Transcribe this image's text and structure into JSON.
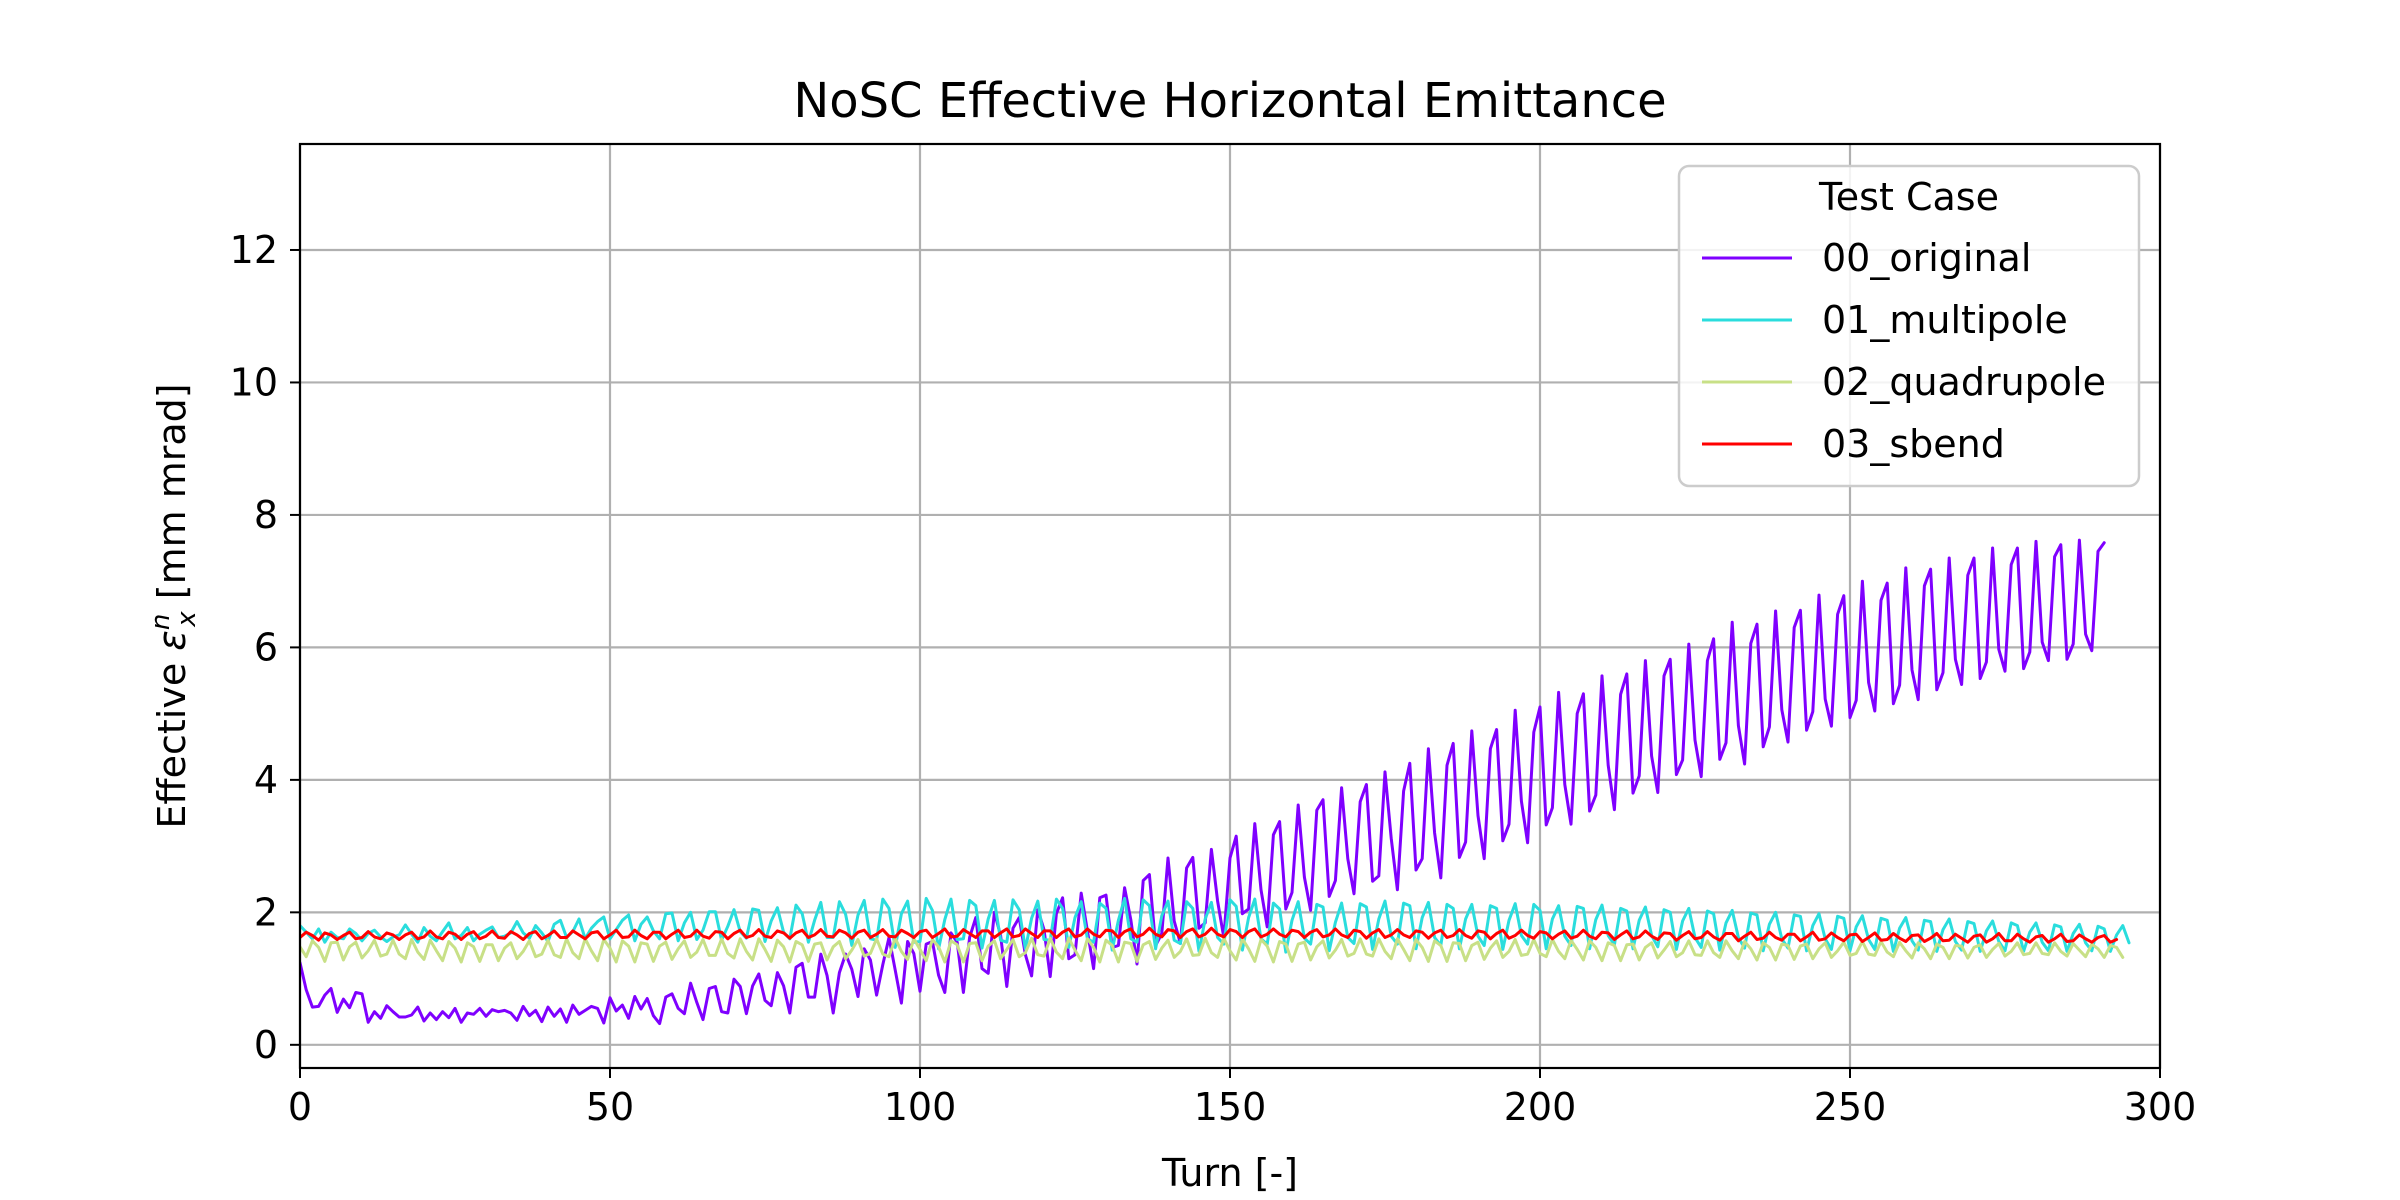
{
  "chart_data": {
    "type": "line",
    "title": "NoSC Effective Horizontal Emittance",
    "xlabel": "Turn [-]",
    "ylabel_prefix": "Effective ",
    "ylabel_symbol": "ε",
    "ylabel_superscript": "n",
    "ylabel_subscript": "x",
    "ylabel_suffix": " [mm mrad]",
    "xlim": [
      0,
      300
    ],
    "ylim": [
      -0.35,
      13.6
    ],
    "xticks": [
      0,
      50,
      100,
      150,
      200,
      250,
      300
    ],
    "yticks": [
      0,
      2,
      4,
      6,
      8,
      10,
      12
    ],
    "grid": true,
    "legend": {
      "title": "Test Case",
      "position": "top-right"
    },
    "series_model": "Values are listed as one value per turn, turns 0 to 300 inclusive.",
    "series": [
      {
        "name": "00_original",
        "color": "#7f00ff",
        "values": [
          1.24,
          0.83,
          0.57,
          0.58,
          0.75,
          0.85,
          0.49,
          0.69,
          0.56,
          0.79,
          0.77,
          0.34,
          0.5,
          0.4,
          0.59,
          0.5,
          0.42,
          0.42,
          0.45,
          0.57,
          0.36,
          0.48,
          0.38,
          0.5,
          0.41,
          0.55,
          0.34,
          0.48,
          0.46,
          0.55,
          0.43,
          0.53,
          0.5,
          0.52,
          0.48,
          0.37,
          0.58,
          0.44,
          0.52,
          0.35,
          0.57,
          0.43,
          0.54,
          0.34,
          0.6,
          0.46,
          0.52,
          0.58,
          0.55,
          0.33,
          0.71,
          0.51,
          0.6,
          0.4,
          0.73,
          0.54,
          0.7,
          0.44,
          0.32,
          0.72,
          0.77,
          0.55,
          0.47,
          0.93,
          0.64,
          0.38,
          0.85,
          0.88,
          0.5,
          0.48,
          0.99,
          0.88,
          0.47,
          0.89,
          1.07,
          0.67,
          0.59,
          1.09,
          0.89,
          0.48,
          1.17,
          1.23,
          0.72,
          0.72,
          1.37,
          1.05,
          0.48,
          1.09,
          1.37,
          1.14,
          0.73,
          1.45,
          1.28,
          0.75,
          1.21,
          1.62,
          1.13,
          0.63,
          1.56,
          1.38,
          0.81,
          1.52,
          1.56,
          1.05,
          0.79,
          1.69,
          1.55,
          0.79,
          1.62,
          1.92,
          1.15,
          1.08,
          2.0,
          1.65,
          0.88,
          1.76,
          1.92,
          1.36,
          1.04,
          2.04,
          1.74,
          1.03,
          1.98,
          2.22,
          1.3,
          1.36,
          2.29,
          1.72,
          1.15,
          2.22,
          2.26,
          1.47,
          1.5,
          2.37,
          1.89,
          1.22,
          2.48,
          2.57,
          1.5,
          1.68,
          2.82,
          1.87,
          1.53,
          2.67,
          2.83,
          1.76,
          1.84,
          2.95,
          2.17,
          1.62,
          2.82,
          3.15,
          1.98,
          2.05,
          3.34,
          2.34,
          1.78,
          3.17,
          3.37,
          2.05,
          2.3,
          3.62,
          2.53,
          2.03,
          3.54,
          3.7,
          2.24,
          2.48,
          3.88,
          2.81,
          2.28,
          3.67,
          3.93,
          2.47,
          2.55,
          4.12,
          3.12,
          2.34,
          3.83,
          4.25,
          2.64,
          2.81,
          4.47,
          3.2,
          2.52,
          4.22,
          4.55,
          2.83,
          3.06,
          4.74,
          3.46,
          2.81,
          4.47,
          4.76,
          3.08,
          3.33,
          5.05,
          3.68,
          3.05,
          4.72,
          5.1,
          3.32,
          3.58,
          5.32,
          3.93,
          3.33,
          5.0,
          5.3,
          3.53,
          3.77,
          5.57,
          4.22,
          3.55,
          5.29,
          5.6,
          3.8,
          4.06,
          5.8,
          4.36,
          3.81,
          5.57,
          5.82,
          4.08,
          4.3,
          6.05,
          4.6,
          4.05,
          5.8,
          6.13,
          4.31,
          4.56,
          6.38,
          4.82,
          4.24,
          6.06,
          6.35,
          4.5,
          4.8,
          6.55,
          5.06,
          4.57,
          6.3,
          6.56,
          4.75,
          5.03,
          6.79,
          5.22,
          4.81,
          6.5,
          6.78,
          4.94,
          5.2,
          7.0,
          5.47,
          5.04,
          6.71,
          6.97,
          5.15,
          5.43,
          7.2,
          5.66,
          5.21,
          6.93,
          7.18,
          5.36,
          5.62,
          7.35,
          5.82,
          5.44,
          7.09,
          7.35,
          5.53,
          5.78,
          7.5,
          5.97,
          5.64,
          7.25,
          7.5,
          5.68,
          5.93,
          7.6,
          6.08,
          5.8,
          7.37,
          7.55,
          5.82,
          6.05,
          7.62,
          6.2,
          5.95,
          7.45,
          7.58
        ]
      },
      {
        "name": "01_multipole",
        "color": "#2adddd",
        "values": [
          1.8,
          1.7,
          1.6,
          1.75,
          1.55,
          1.7,
          1.62,
          1.6,
          1.75,
          1.68,
          1.57,
          1.68,
          1.73,
          1.63,
          1.56,
          1.63,
          1.66,
          1.81,
          1.67,
          1.55,
          1.77,
          1.64,
          1.57,
          1.71,
          1.84,
          1.6,
          1.65,
          1.77,
          1.57,
          1.67,
          1.73,
          1.78,
          1.62,
          1.64,
          1.69,
          1.86,
          1.69,
          1.61,
          1.8,
          1.69,
          1.56,
          1.82,
          1.88,
          1.62,
          1.71,
          1.9,
          1.6,
          1.76,
          1.86,
          1.93,
          1.6,
          1.74,
          1.88,
          1.96,
          1.57,
          1.82,
          1.93,
          1.72,
          1.6,
          1.98,
          1.99,
          1.57,
          1.84,
          2.0,
          1.59,
          1.73,
          2.01,
          2.01,
          1.58,
          1.79,
          2.04,
          1.71,
          1.61,
          2.05,
          2.03,
          1.56,
          1.87,
          2.07,
          1.7,
          1.6,
          2.11,
          1.98,
          1.55,
          1.88,
          2.15,
          1.62,
          1.62,
          2.16,
          1.97,
          1.5,
          1.96,
          2.18,
          1.6,
          1.58,
          2.2,
          2.06,
          1.47,
          1.98,
          2.17,
          1.55,
          1.56,
          2.21,
          2.03,
          1.45,
          1.89,
          2.2,
          1.59,
          1.6,
          2.18,
          2.1,
          1.46,
          1.9,
          2.18,
          1.58,
          1.55,
          2.19,
          2.04,
          1.45,
          1.91,
          2.17,
          1.59,
          1.58,
          2.2,
          2.06,
          1.47,
          1.92,
          2.16,
          1.6,
          1.55,
          2.14,
          2.06,
          1.43,
          1.88,
          2.21,
          1.6,
          1.55,
          2.19,
          2.1,
          1.45,
          1.95,
          2.17,
          1.58,
          1.53,
          2.16,
          2.06,
          1.41,
          1.9,
          2.15,
          1.62,
          1.52,
          2.19,
          2.09,
          1.43,
          1.92,
          2.2,
          1.6,
          1.52,
          2.14,
          2.05,
          1.4,
          1.88,
          2.16,
          1.61,
          1.52,
          2.12,
          2.08,
          1.42,
          1.85,
          2.14,
          1.62,
          1.53,
          2.13,
          2.08,
          1.44,
          1.9,
          2.17,
          1.64,
          1.52,
          2.14,
          2.1,
          1.45,
          1.92,
          2.15,
          1.62,
          1.5,
          2.12,
          2.06,
          1.45,
          1.9,
          2.12,
          1.64,
          1.5,
          2.1,
          2.06,
          1.44,
          1.88,
          2.13,
          1.65,
          1.52,
          2.12,
          2.03,
          1.45,
          1.9,
          2.1,
          1.64,
          1.5,
          2.09,
          2.06,
          1.45,
          1.89,
          2.11,
          1.65,
          1.51,
          2.06,
          2.02,
          1.45,
          1.88,
          2.08,
          1.65,
          1.48,
          2.04,
          2.0,
          1.44,
          1.87,
          2.06,
          1.62,
          1.47,
          2.02,
          1.98,
          1.43,
          1.84,
          2.03,
          1.62,
          1.46,
          1.99,
          1.96,
          1.42,
          1.82,
          2.0,
          1.6,
          1.46,
          1.96,
          1.94,
          1.42,
          1.8,
          1.98,
          1.6,
          1.44,
          1.94,
          1.91,
          1.42,
          1.78,
          1.95,
          1.59,
          1.44,
          1.91,
          1.88,
          1.41,
          1.76,
          1.92,
          1.57,
          1.43,
          1.88,
          1.86,
          1.41,
          1.74,
          1.9,
          1.56,
          1.43,
          1.86,
          1.83,
          1.41,
          1.72,
          1.87,
          1.56,
          1.42,
          1.84,
          1.8,
          1.41,
          1.7,
          1.84,
          1.55,
          1.42,
          1.81,
          1.78,
          1.41,
          1.68,
          1.82,
          1.54,
          1.42,
          1.79,
          1.75,
          1.41,
          1.66,
          1.8,
          1.54
        ]
      },
      {
        "name": "02_quadrupole",
        "color": "#c8e087",
        "values": [
          1.48,
          1.33,
          1.57,
          1.47,
          1.26,
          1.54,
          1.55,
          1.28,
          1.48,
          1.55,
          1.31,
          1.42,
          1.58,
          1.34,
          1.37,
          1.58,
          1.37,
          1.3,
          1.59,
          1.4,
          1.29,
          1.58,
          1.42,
          1.27,
          1.56,
          1.46,
          1.25,
          1.54,
          1.48,
          1.26,
          1.51,
          1.51,
          1.27,
          1.46,
          1.54,
          1.3,
          1.41,
          1.57,
          1.33,
          1.37,
          1.58,
          1.36,
          1.32,
          1.6,
          1.39,
          1.3,
          1.6,
          1.42,
          1.27,
          1.59,
          1.46,
          1.25,
          1.57,
          1.49,
          1.25,
          1.54,
          1.52,
          1.26,
          1.49,
          1.55,
          1.29,
          1.45,
          1.57,
          1.32,
          1.4,
          1.59,
          1.35,
          1.35,
          1.6,
          1.38,
          1.31,
          1.6,
          1.41,
          1.28,
          1.6,
          1.44,
          1.26,
          1.58,
          1.48,
          1.25,
          1.56,
          1.51,
          1.26,
          1.52,
          1.54,
          1.28,
          1.48,
          1.56,
          1.3,
          1.43,
          1.59,
          1.34,
          1.38,
          1.6,
          1.37,
          1.33,
          1.61,
          1.41,
          1.29,
          1.6,
          1.44,
          1.27,
          1.59,
          1.48,
          1.25,
          1.57,
          1.51,
          1.25,
          1.53,
          1.54,
          1.27,
          1.49,
          1.57,
          1.3,
          1.44,
          1.59,
          1.33,
          1.39,
          1.61,
          1.36,
          1.34,
          1.61,
          1.4,
          1.3,
          1.61,
          1.43,
          1.27,
          1.6,
          1.47,
          1.25,
          1.58,
          1.5,
          1.25,
          1.55,
          1.53,
          1.26,
          1.51,
          1.56,
          1.29,
          1.46,
          1.58,
          1.32,
          1.41,
          1.6,
          1.35,
          1.36,
          1.61,
          1.39,
          1.32,
          1.61,
          1.42,
          1.28,
          1.6,
          1.45,
          1.26,
          1.59,
          1.49,
          1.25,
          1.56,
          1.52,
          1.26,
          1.52,
          1.55,
          1.28,
          1.48,
          1.57,
          1.31,
          1.43,
          1.59,
          1.34,
          1.38,
          1.6,
          1.37,
          1.34,
          1.6,
          1.41,
          1.3,
          1.6,
          1.44,
          1.27,
          1.59,
          1.47,
          1.26,
          1.57,
          1.5,
          1.26,
          1.54,
          1.53,
          1.27,
          1.5,
          1.55,
          1.29,
          1.46,
          1.57,
          1.32,
          1.41,
          1.59,
          1.35,
          1.37,
          1.59,
          1.38,
          1.33,
          1.59,
          1.41,
          1.3,
          1.58,
          1.44,
          1.28,
          1.57,
          1.47,
          1.27,
          1.54,
          1.5,
          1.27,
          1.51,
          1.52,
          1.28,
          1.47,
          1.54,
          1.31,
          1.43,
          1.56,
          1.33,
          1.39,
          1.57,
          1.36,
          1.35,
          1.57,
          1.39,
          1.32,
          1.57,
          1.42,
          1.3,
          1.56,
          1.45,
          1.28,
          1.54,
          1.47,
          1.28,
          1.52,
          1.5,
          1.29,
          1.49,
          1.52,
          1.3,
          1.45,
          1.54,
          1.32,
          1.42,
          1.55,
          1.35,
          1.38,
          1.56,
          1.37,
          1.35,
          1.56,
          1.4,
          1.33,
          1.55,
          1.42,
          1.31,
          1.54,
          1.45,
          1.3,
          1.52,
          1.47,
          1.3,
          1.5,
          1.49,
          1.31,
          1.47,
          1.51,
          1.32,
          1.44,
          1.53,
          1.34,
          1.41,
          1.54,
          1.36,
          1.38,
          1.54,
          1.38,
          1.36,
          1.54,
          1.41,
          1.34,
          1.53,
          1.43,
          1.33,
          1.52,
          1.45,
          1.32,
          1.5,
          1.47,
          1.32
        ]
      },
      {
        "name": "03_sbend",
        "color": "#ff0000",
        "values": [
          1.62,
          1.7,
          1.65,
          1.58,
          1.69,
          1.66,
          1.59,
          1.65,
          1.7,
          1.6,
          1.62,
          1.71,
          1.63,
          1.6,
          1.69,
          1.66,
          1.59,
          1.66,
          1.7,
          1.6,
          1.63,
          1.72,
          1.63,
          1.6,
          1.7,
          1.67,
          1.59,
          1.67,
          1.71,
          1.6,
          1.64,
          1.72,
          1.62,
          1.61,
          1.71,
          1.66,
          1.59,
          1.68,
          1.71,
          1.6,
          1.65,
          1.72,
          1.62,
          1.62,
          1.72,
          1.66,
          1.6,
          1.69,
          1.71,
          1.6,
          1.66,
          1.73,
          1.62,
          1.63,
          1.73,
          1.65,
          1.6,
          1.7,
          1.7,
          1.6,
          1.67,
          1.73,
          1.62,
          1.64,
          1.73,
          1.64,
          1.61,
          1.71,
          1.7,
          1.6,
          1.68,
          1.73,
          1.62,
          1.65,
          1.74,
          1.64,
          1.62,
          1.72,
          1.69,
          1.61,
          1.69,
          1.73,
          1.62,
          1.66,
          1.74,
          1.64,
          1.63,
          1.73,
          1.69,
          1.61,
          1.7,
          1.73,
          1.62,
          1.67,
          1.74,
          1.64,
          1.63,
          1.73,
          1.68,
          1.62,
          1.71,
          1.73,
          1.62,
          1.68,
          1.75,
          1.63,
          1.64,
          1.74,
          1.68,
          1.62,
          1.72,
          1.72,
          1.62,
          1.69,
          1.75,
          1.63,
          1.65,
          1.75,
          1.68,
          1.62,
          1.72,
          1.72,
          1.62,
          1.7,
          1.75,
          1.63,
          1.66,
          1.75,
          1.67,
          1.63,
          1.73,
          1.72,
          1.62,
          1.71,
          1.75,
          1.63,
          1.67,
          1.76,
          1.67,
          1.63,
          1.74,
          1.72,
          1.62,
          1.71,
          1.75,
          1.63,
          1.67,
          1.76,
          1.67,
          1.63,
          1.74,
          1.71,
          1.62,
          1.71,
          1.75,
          1.63,
          1.67,
          1.75,
          1.67,
          1.63,
          1.73,
          1.71,
          1.62,
          1.7,
          1.74,
          1.63,
          1.66,
          1.75,
          1.66,
          1.62,
          1.73,
          1.71,
          1.61,
          1.69,
          1.74,
          1.62,
          1.66,
          1.74,
          1.66,
          1.62,
          1.72,
          1.7,
          1.61,
          1.69,
          1.73,
          1.62,
          1.65,
          1.74,
          1.65,
          1.61,
          1.72,
          1.7,
          1.6,
          1.68,
          1.73,
          1.61,
          1.65,
          1.73,
          1.65,
          1.61,
          1.71,
          1.69,
          1.6,
          1.67,
          1.72,
          1.61,
          1.64,
          1.73,
          1.64,
          1.6,
          1.7,
          1.69,
          1.59,
          1.66,
          1.72,
          1.6,
          1.63,
          1.72,
          1.64,
          1.59,
          1.69,
          1.68,
          1.58,
          1.65,
          1.71,
          1.6,
          1.62,
          1.71,
          1.63,
          1.58,
          1.68,
          1.68,
          1.57,
          1.64,
          1.7,
          1.59,
          1.61,
          1.7,
          1.62,
          1.58,
          1.67,
          1.67,
          1.57,
          1.63,
          1.7,
          1.58,
          1.6,
          1.69,
          1.62,
          1.57,
          1.66,
          1.67,
          1.56,
          1.62,
          1.69,
          1.58,
          1.59,
          1.68,
          1.61,
          1.56,
          1.65,
          1.66,
          1.56,
          1.61,
          1.68,
          1.57,
          1.58,
          1.67,
          1.61,
          1.55,
          1.64,
          1.66,
          1.55,
          1.6,
          1.68,
          1.57,
          1.57,
          1.67,
          1.6,
          1.55,
          1.63,
          1.65,
          1.55,
          1.6,
          1.67,
          1.56,
          1.57,
          1.66,
          1.6,
          1.55,
          1.62,
          1.65,
          1.55,
          1.59
        ]
      }
    ]
  }
}
